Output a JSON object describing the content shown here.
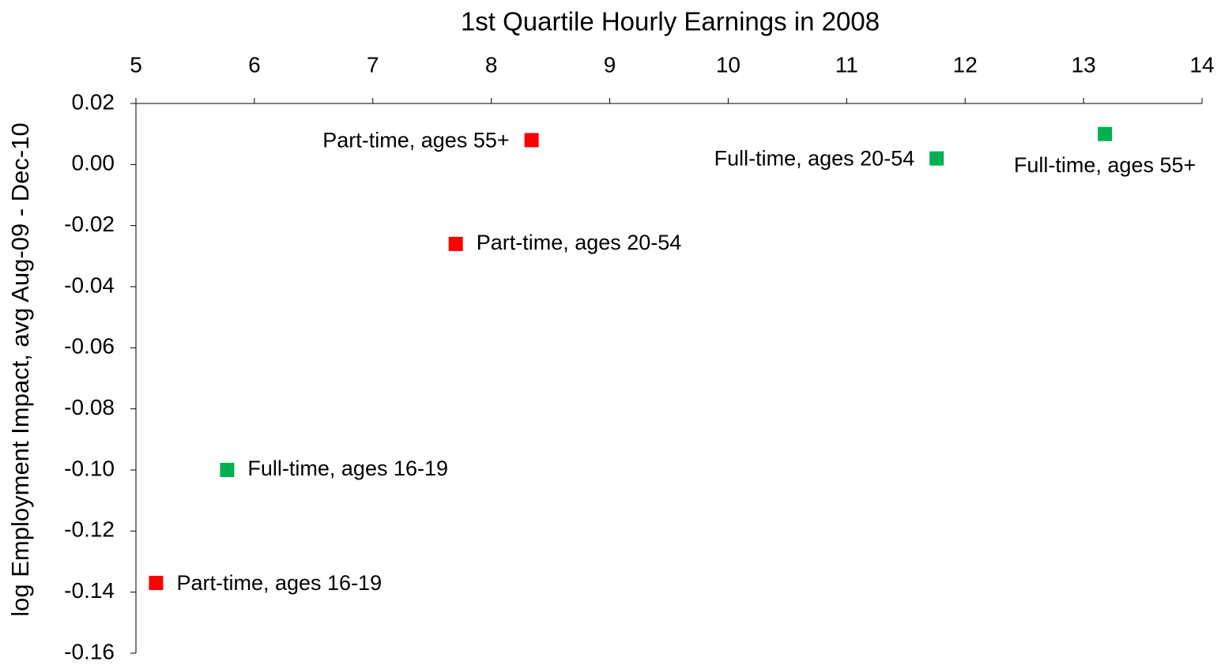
{
  "chart_data": {
    "type": "scatter",
    "xlabel": "1st Quartile Hourly Earnings in 2008",
    "ylabel": "log Employment Impact, avg Aug-09 - Dec-10",
    "xlim": [
      5,
      14
    ],
    "xticks": [
      5,
      6,
      7,
      8,
      9,
      10,
      11,
      12,
      13,
      14
    ],
    "ylim": [
      -0.16,
      0.02
    ],
    "yticks": [
      0.02,
      {
        "value": 0,
        "label": "0.00"
      },
      -0.02,
      -0.04,
      -0.06,
      -0.08,
      {
        "value": -0.1,
        "label": "-0.10"
      },
      -0.12,
      -0.14,
      -0.16
    ],
    "x_axis_position": "top",
    "series": [
      {
        "color": "#ff0000",
        "x": [
          8.34,
          7.7,
          5.17
        ],
        "values": [
          0.008,
          -0.026,
          -0.137
        ],
        "point_labels": [
          "Part-time, ages 55+",
          "Part-time, ages 20-54",
          "Part-time, ages 16-19"
        ]
      },
      {
        "color": "#00b050",
        "x": [
          11.76,
          13.18,
          5.77
        ],
        "values": [
          0.002,
          0.01,
          -0.1
        ],
        "point_labels": [
          "Full-time, ages 20-54",
          "Full-time, ages 55+",
          "Full-time, ages 16-19"
        ]
      }
    ]
  }
}
